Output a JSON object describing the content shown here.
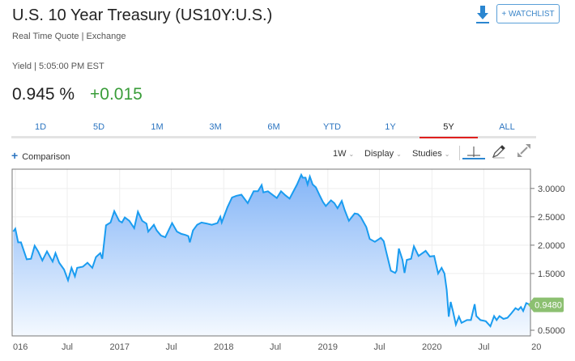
{
  "header": {
    "title": "U.S. 10 Year Treasury (US10Y:U.S.)",
    "subtitle": "Real Time Quote | Exchange",
    "yield_line": "Yield | 5:05:00 PM EST",
    "price": "0.945 %",
    "change": "+0.015",
    "download_icon": "download-icon",
    "watchlist_label": "+ WATCHLIST"
  },
  "colors": {
    "accent": "#2b74c0",
    "positive": "#3a9d3a",
    "line": "#1a9cf0",
    "badge": "#8cc071",
    "active_tab": "#e0201e"
  },
  "tabs": [
    {
      "label": "1D"
    },
    {
      "label": "5D"
    },
    {
      "label": "1M"
    },
    {
      "label": "3M"
    },
    {
      "label": "6M"
    },
    {
      "label": "YTD"
    },
    {
      "label": "1Y"
    },
    {
      "label": "5Y",
      "active": true
    },
    {
      "label": "ALL"
    }
  ],
  "toolbar": {
    "comparison_label": "Comparison",
    "interval_label": "1W",
    "display_label": "Display",
    "studies_label": "Studies",
    "icons": [
      "crosshair-icon",
      "pencil-icon",
      "expand-icon"
    ]
  },
  "chart_data": {
    "type": "area",
    "title": "",
    "xlabel": "",
    "ylabel": "",
    "ylim": [
      0.4,
      3.34
    ],
    "grid": true,
    "y_ticks": [
      {
        "v": 3.0,
        "label": "3.0000"
      },
      {
        "v": 2.5,
        "label": "2.5000"
      },
      {
        "v": 2.0,
        "label": "2.0000"
      },
      {
        "v": 1.5,
        "label": "1.5000"
      },
      {
        "v": 0.5,
        "label": "0.5000"
      }
    ],
    "x_ticks": [
      {
        "date": "2016-01-01",
        "label": "016"
      },
      {
        "date": "2016-07-01",
        "label": "Jul"
      },
      {
        "date": "2017-01-01",
        "label": "2017"
      },
      {
        "date": "2017-07-01",
        "label": "Jul"
      },
      {
        "date": "2018-01-01",
        "label": "2018"
      },
      {
        "date": "2018-07-01",
        "label": "Jul"
      },
      {
        "date": "2019-01-01",
        "label": "2019"
      },
      {
        "date": "2019-07-01",
        "label": "Jul"
      },
      {
        "date": "2020-01-01",
        "label": "2020"
      },
      {
        "date": "2020-07-01",
        "label": "Jul"
      },
      {
        "date": "2021-01-01",
        "label": "20"
      }
    ],
    "last_value_label": "0.9480",
    "last_value": 0.948,
    "points": [
      [
        "2015-12-25",
        2.24
      ],
      [
        "2016-01-01",
        2.29
      ],
      [
        "2016-01-11",
        2.05
      ],
      [
        "2016-01-21",
        2.05
      ],
      [
        "2016-02-10",
        1.75
      ],
      [
        "2016-02-25",
        1.76
      ],
      [
        "2016-03-09",
        1.99
      ],
      [
        "2016-03-21",
        1.89
      ],
      [
        "2016-04-05",
        1.73
      ],
      [
        "2016-04-21",
        1.89
      ],
      [
        "2016-05-11",
        1.71
      ],
      [
        "2016-05-21",
        1.86
      ],
      [
        "2016-06-03",
        1.69
      ],
      [
        "2016-06-20",
        1.57
      ],
      [
        "2016-07-04",
        1.38
      ],
      [
        "2016-07-16",
        1.6
      ],
      [
        "2016-07-28",
        1.45
      ],
      [
        "2016-08-05",
        1.6
      ],
      [
        "2016-08-25",
        1.62
      ],
      [
        "2016-09-10",
        1.69
      ],
      [
        "2016-09-27",
        1.6
      ],
      [
        "2016-10-10",
        1.79
      ],
      [
        "2016-10-25",
        1.86
      ],
      [
        "2016-11-01",
        1.76
      ],
      [
        "2016-11-14",
        2.35
      ],
      [
        "2016-11-30",
        2.4
      ],
      [
        "2016-12-13",
        2.6
      ],
      [
        "2016-12-30",
        2.43
      ],
      [
        "2017-01-09",
        2.4
      ],
      [
        "2017-01-19",
        2.49
      ],
      [
        "2017-02-04",
        2.43
      ],
      [
        "2017-02-21",
        2.3
      ],
      [
        "2017-03-06",
        2.59
      ],
      [
        "2017-03-21",
        2.43
      ],
      [
        "2017-04-05",
        2.38
      ],
      [
        "2017-04-11",
        2.24
      ],
      [
        "2017-05-01",
        2.36
      ],
      [
        "2017-05-11",
        2.26
      ],
      [
        "2017-05-26",
        2.17
      ],
      [
        "2017-06-10",
        2.14
      ],
      [
        "2017-07-04",
        2.39
      ],
      [
        "2017-07-21",
        2.24
      ],
      [
        "2017-08-05",
        2.2
      ],
      [
        "2017-08-20",
        2.18
      ],
      [
        "2017-08-30",
        2.16
      ],
      [
        "2017-09-04",
        2.05
      ],
      [
        "2017-09-15",
        2.26
      ],
      [
        "2017-09-30",
        2.36
      ],
      [
        "2017-10-15",
        2.4
      ],
      [
        "2017-11-04",
        2.38
      ],
      [
        "2017-11-20",
        2.36
      ],
      [
        "2017-12-10",
        2.39
      ],
      [
        "2017-12-20",
        2.5
      ],
      [
        "2017-12-25",
        2.4
      ],
      [
        "2018-01-14",
        2.67
      ],
      [
        "2018-01-30",
        2.84
      ],
      [
        "2018-02-14",
        2.87
      ],
      [
        "2018-03-04",
        2.89
      ],
      [
        "2018-03-26",
        2.74
      ],
      [
        "2018-04-16",
        2.95
      ],
      [
        "2018-05-01",
        2.95
      ],
      [
        "2018-05-14",
        3.06
      ],
      [
        "2018-05-20",
        2.93
      ],
      [
        "2018-06-05",
        2.95
      ],
      [
        "2018-07-06",
        2.83
      ],
      [
        "2018-07-21",
        2.95
      ],
      [
        "2018-08-05",
        2.88
      ],
      [
        "2018-08-20",
        2.82
      ],
      [
        "2018-09-15",
        3.07
      ],
      [
        "2018-09-30",
        3.24
      ],
      [
        "2018-10-05",
        3.19
      ],
      [
        "2018-10-15",
        3.19
      ],
      [
        "2018-10-22",
        3.07
      ],
      [
        "2018-10-30",
        3.21
      ],
      [
        "2018-11-09",
        3.07
      ],
      [
        "2018-11-20",
        3.02
      ],
      [
        "2018-12-03",
        2.88
      ],
      [
        "2018-12-15",
        2.76
      ],
      [
        "2018-12-25",
        2.69
      ],
      [
        "2019-01-12",
        2.79
      ],
      [
        "2019-01-24",
        2.74
      ],
      [
        "2019-02-04",
        2.65
      ],
      [
        "2019-02-19",
        2.78
      ],
      [
        "2019-03-01",
        2.62
      ],
      [
        "2019-03-16",
        2.43
      ],
      [
        "2019-04-05",
        2.56
      ],
      [
        "2019-04-16",
        2.55
      ],
      [
        "2019-04-26",
        2.5
      ],
      [
        "2019-05-16",
        2.32
      ],
      [
        "2019-05-28",
        2.11
      ],
      [
        "2019-06-15",
        2.06
      ],
      [
        "2019-07-06",
        2.13
      ],
      [
        "2019-07-16",
        2.07
      ],
      [
        "2019-07-26",
        1.86
      ],
      [
        "2019-08-10",
        1.55
      ],
      [
        "2019-08-25",
        1.51
      ],
      [
        "2019-08-30",
        1.55
      ],
      [
        "2019-09-07",
        1.94
      ],
      [
        "2019-09-20",
        1.74
      ],
      [
        "2019-09-27",
        1.51
      ],
      [
        "2019-10-05",
        1.74
      ],
      [
        "2019-10-20",
        1.76
      ],
      [
        "2019-10-30",
        1.98
      ],
      [
        "2019-11-15",
        1.81
      ],
      [
        "2019-12-10",
        1.9
      ],
      [
        "2019-12-25",
        1.8
      ],
      [
        "2020-01-09",
        1.81
      ],
      [
        "2020-01-23",
        1.5
      ],
      [
        "2020-02-04",
        1.6
      ],
      [
        "2020-02-14",
        1.5
      ],
      [
        "2020-02-22",
        1.21
      ],
      [
        "2020-02-29",
        0.74
      ],
      [
        "2020-03-07",
        1.0
      ],
      [
        "2020-03-15",
        0.83
      ],
      [
        "2020-03-25",
        0.6
      ],
      [
        "2020-04-05",
        0.74
      ],
      [
        "2020-04-14",
        0.63
      ],
      [
        "2020-05-03",
        0.68
      ],
      [
        "2020-05-17",
        0.68
      ],
      [
        "2020-05-30",
        0.96
      ],
      [
        "2020-06-05",
        0.75
      ],
      [
        "2020-06-19",
        0.68
      ],
      [
        "2020-07-08",
        0.66
      ],
      [
        "2020-07-24",
        0.57
      ],
      [
        "2020-08-06",
        0.75
      ],
      [
        "2020-08-15",
        0.68
      ],
      [
        "2020-08-25",
        0.75
      ],
      [
        "2020-09-08",
        0.7
      ],
      [
        "2020-09-22",
        0.72
      ],
      [
        "2020-10-06",
        0.8
      ],
      [
        "2020-10-20",
        0.89
      ],
      [
        "2020-10-30",
        0.86
      ],
      [
        "2020-11-08",
        0.91
      ],
      [
        "2020-11-16",
        0.84
      ],
      [
        "2020-11-27",
        0.98
      ],
      [
        "2020-12-11",
        0.948
      ]
    ]
  }
}
